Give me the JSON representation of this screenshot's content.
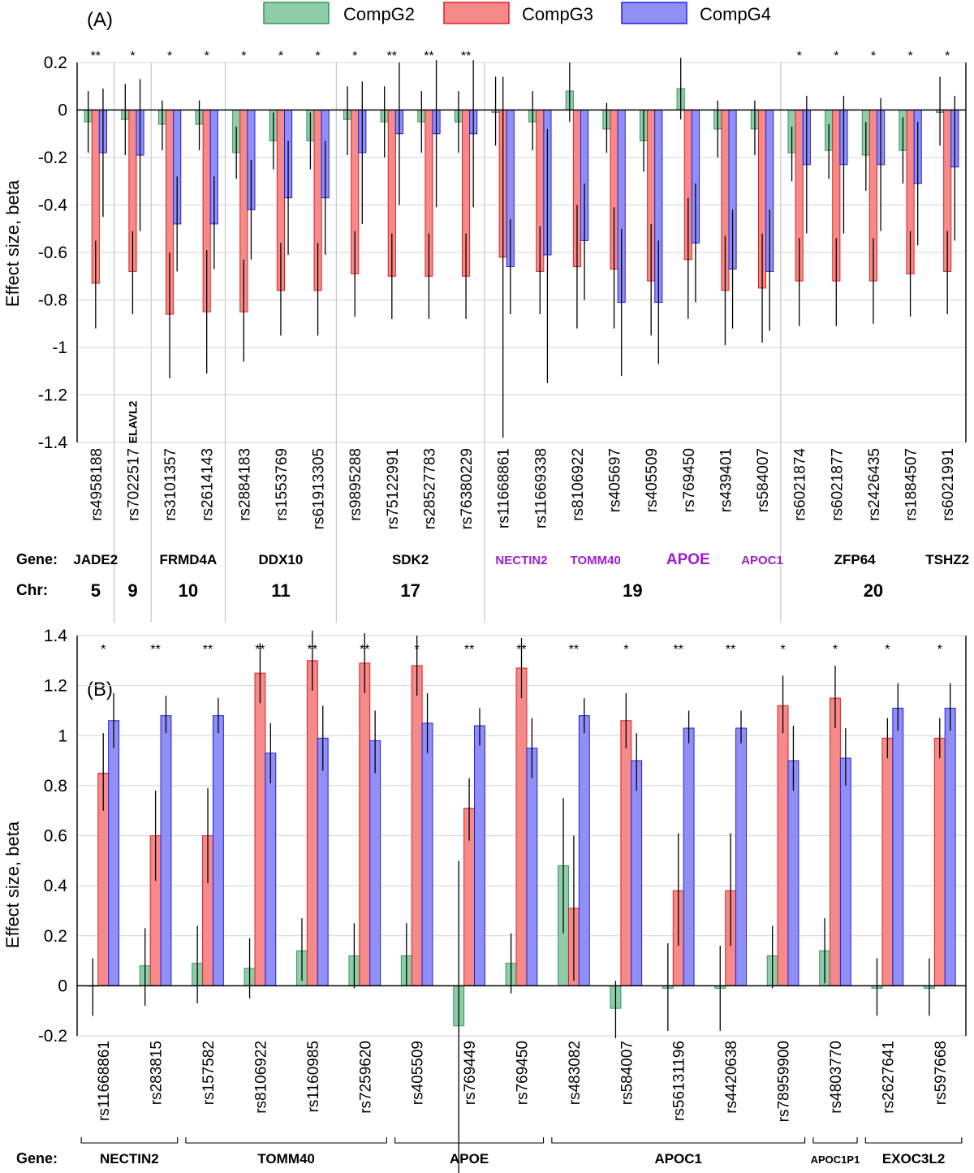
{
  "colors": {
    "CompG2": {
      "fill": "#8fcdaa",
      "stroke": "#2f9a55"
    },
    "CompG3": {
      "fill": "#f58a8a",
      "stroke": "#e01e1e"
    },
    "CompG4": {
      "fill": "#8f8ff5",
      "stroke": "#2020e0"
    }
  },
  "legend": [
    "CompG2",
    "CompG3",
    "CompG4"
  ],
  "chart_data": [
    {
      "panel": "(A)",
      "type": "bar",
      "ylabel": "Effect size, beta",
      "ylim": [
        -1.4,
        0.2
      ],
      "yticks": [
        "0.2",
        "0",
        "-0.2",
        "-0.4",
        "-0.6",
        "-0.8",
        "-1",
        "-1.2",
        "-1.4"
      ],
      "ytick_values": [
        0.2,
        0,
        -0.2,
        -0.4,
        -0.6,
        -0.8,
        -1,
        -1.2,
        -1.4
      ],
      "categories": [
        "rs4958188",
        "rs7022517",
        "rs3101357",
        "rs2614143",
        "rs2884183",
        "rs1553769",
        "rs61913305",
        "rs9895288",
        "rs75122991",
        "rs28527783",
        "rs76380229",
        "rs11668861",
        "rs11669338",
        "rs8106922",
        "rs405697",
        "rs405509",
        "rs769450",
        "rs439401",
        "rs584007",
        "rs6021874",
        "rs6021877",
        "rs2426435",
        "rs1884507",
        "rs6021991"
      ],
      "significance": [
        "**",
        "*",
        "*",
        "*",
        "*",
        "*",
        "*",
        "*",
        "**",
        "**",
        "**",
        "",
        "",
        "",
        "",
        "",
        "",
        "",
        "",
        "*",
        "*",
        "*",
        "*",
        "*"
      ],
      "series": [
        {
          "name": "CompG2",
          "values": [
            -0.05,
            -0.04,
            -0.06,
            -0.06,
            -0.18,
            -0.13,
            -0.13,
            -0.04,
            -0.05,
            -0.05,
            -0.05,
            -0.01,
            -0.05,
            0.08,
            -0.08,
            -0.13,
            0.09,
            -0.08,
            -0.08,
            -0.18,
            -0.17,
            -0.19,
            -0.17,
            -0.01
          ],
          "ci": [
            [
              -0.18,
              0.08
            ],
            [
              -0.19,
              0.11
            ],
            [
              -0.17,
              0.04
            ],
            [
              -0.17,
              0.04
            ],
            [
              -0.29,
              -0.07
            ],
            [
              -0.25,
              -0.01
            ],
            [
              -0.25,
              -0.01
            ],
            [
              -0.19,
              0.1
            ],
            [
              -0.2,
              0.1
            ],
            [
              -0.18,
              0.08
            ],
            [
              -0.18,
              0.08
            ],
            [
              -0.15,
              0.14
            ],
            [
              -0.17,
              0.08
            ],
            [
              -0.05,
              0.2
            ],
            [
              -0.18,
              0.03
            ],
            [
              -0.26,
              0.0
            ],
            [
              -0.04,
              0.22
            ],
            [
              -0.2,
              0.04
            ],
            [
              -0.19,
              0.04
            ],
            [
              -0.3,
              -0.07
            ],
            [
              -0.29,
              -0.06
            ],
            [
              -0.34,
              -0.05
            ],
            [
              -0.31,
              -0.03
            ],
            [
              -0.15,
              0.14
            ]
          ]
        },
        {
          "name": "CompG3",
          "values": [
            -0.73,
            -0.68,
            -0.86,
            -0.85,
            -0.85,
            -0.76,
            -0.76,
            -0.69,
            -0.7,
            -0.7,
            -0.7,
            -0.62,
            -0.68,
            -0.66,
            -0.67,
            -0.72,
            -0.63,
            -0.76,
            -0.75,
            -0.72,
            -0.72,
            -0.72,
            -0.69,
            -0.68
          ],
          "ci": [
            [
              -0.92,
              -0.55
            ],
            [
              -0.86,
              -0.51
            ],
            [
              -1.13,
              -0.6
            ],
            [
              -1.11,
              -0.59
            ],
            [
              -1.06,
              -0.63
            ],
            [
              -0.95,
              -0.56
            ],
            [
              -0.95,
              -0.56
            ],
            [
              -0.87,
              -0.51
            ],
            [
              -0.88,
              -0.52
            ],
            [
              -0.88,
              -0.52
            ],
            [
              -0.88,
              -0.52
            ],
            [
              -1.38,
              0.14
            ],
            [
              -0.86,
              -0.49
            ],
            [
              -0.92,
              -0.4
            ],
            [
              -0.92,
              -0.41
            ],
            [
              -0.95,
              -0.48
            ],
            [
              -0.88,
              -0.37
            ],
            [
              -0.99,
              -0.53
            ],
            [
              -0.98,
              -0.52
            ],
            [
              -0.91,
              -0.54
            ],
            [
              -0.91,
              -0.54
            ],
            [
              -0.9,
              -0.54
            ],
            [
              -0.87,
              -0.51
            ],
            [
              -0.86,
              -0.51
            ]
          ]
        },
        {
          "name": "CompG4",
          "values": [
            -0.18,
            -0.19,
            -0.48,
            -0.48,
            -0.42,
            -0.37,
            -0.37,
            -0.18,
            -0.1,
            -0.1,
            -0.1,
            -0.66,
            -0.61,
            -0.55,
            -0.81,
            -0.81,
            -0.56,
            -0.67,
            -0.68,
            -0.23,
            -0.23,
            -0.23,
            -0.31,
            -0.24
          ],
          "ci": [
            [
              -0.45,
              0.09
            ],
            [
              -0.51,
              0.13
            ],
            [
              -0.68,
              -0.28
            ],
            [
              -0.67,
              -0.28
            ],
            [
              -0.63,
              -0.21
            ],
            [
              -0.61,
              -0.13
            ],
            [
              -0.61,
              -0.13
            ],
            [
              -0.48,
              0.12
            ],
            [
              -0.4,
              0.2
            ],
            [
              -0.41,
              0.21
            ],
            [
              -0.41,
              0.21
            ],
            [
              -0.86,
              -0.46
            ],
            [
              -1.15,
              -0.08
            ],
            [
              -0.8,
              -0.31
            ],
            [
              -1.12,
              -0.5
            ],
            [
              -1.07,
              -0.55
            ],
            [
              -0.81,
              -0.31
            ],
            [
              -0.92,
              -0.42
            ],
            [
              -0.93,
              -0.42
            ],
            [
              -0.52,
              0.06
            ],
            [
              -0.52,
              0.06
            ],
            [
              -0.51,
              0.05
            ],
            [
              -0.57,
              -0.05
            ],
            [
              -0.55,
              0.06
            ]
          ]
        }
      ],
      "genes": [
        {
          "label": "JADE2",
          "start": 0,
          "end": 0,
          "purple": false
        },
        {
          "label": "ELAVL2",
          "start": 1,
          "end": 1,
          "purple": false,
          "vertical": true
        },
        {
          "label": "FRMD4A",
          "start": 2,
          "end": 3,
          "purple": false
        },
        {
          "label": "DDX10",
          "start": 4,
          "end": 6,
          "purple": false
        },
        {
          "label": "SDK2",
          "start": 7,
          "end": 10,
          "purple": false
        },
        {
          "label": "NECTIN2",
          "start": 11,
          "end": 12,
          "purple": true
        },
        {
          "label": "TOMM40",
          "start": 13,
          "end": 14,
          "purple": true
        },
        {
          "label": "APOE",
          "start": 15,
          "end": 17,
          "purple": true
        },
        {
          "label": "APOC1",
          "start": 18,
          "end": 18,
          "purple": true
        },
        {
          "label": "ZFP64",
          "start": 19,
          "end": 22,
          "purple": false
        },
        {
          "label": "TSHZ2",
          "start": 23,
          "end": 23,
          "purple": false
        }
      ],
      "chromosomes": [
        {
          "label": "5",
          "start": 0,
          "end": 0
        },
        {
          "label": "9",
          "start": 1,
          "end": 1
        },
        {
          "label": "10",
          "start": 2,
          "end": 3
        },
        {
          "label": "11",
          "start": 4,
          "end": 6
        },
        {
          "label": "17",
          "start": 7,
          "end": 10
        },
        {
          "label": "19",
          "start": 11,
          "end": 18
        },
        {
          "label": "20",
          "start": 19,
          "end": 23
        }
      ],
      "gene_row_label": "Gene:",
      "chr_row_label": "Chr:"
    },
    {
      "panel": "(B)",
      "type": "bar",
      "ylabel": "Effect size, beta",
      "ylim": [
        -0.2,
        1.4
      ],
      "yticks": [
        "1.4",
        "1.2",
        "1",
        "0.8",
        "0.6",
        "0.4",
        "0.2",
        "0",
        "-0.2"
      ],
      "ytick_values": [
        1.4,
        1.2,
        1,
        0.8,
        0.6,
        0.4,
        0.2,
        0,
        -0.2
      ],
      "categories": [
        "rs11668861",
        "rs283815",
        "rs157582",
        "rs8106922",
        "rs1160985",
        "rs7259620",
        "rs405509",
        "rs769449",
        "rs769450",
        "rs483082",
        "rs584007",
        "rs56131196",
        "rs4420638",
        "rs78959900",
        "rs4803770",
        "rs2627641",
        "rs597668"
      ],
      "significance": [
        "*",
        "**",
        "**",
        "**",
        "**",
        "**",
        "*",
        "**",
        "**",
        "**",
        "*",
        "**",
        "**",
        "*",
        "*",
        "*",
        "*"
      ],
      "series": [
        {
          "name": "CompG2",
          "values": [
            0.0,
            0.08,
            0.09,
            0.07,
            0.14,
            0.12,
            0.12,
            -0.16,
            0.09,
            0.48,
            -0.09,
            -0.01,
            -0.01,
            0.12,
            0.14,
            -0.01,
            -0.01
          ],
          "ci": [
            [
              -0.12,
              0.11
            ],
            [
              -0.08,
              0.23
            ],
            [
              -0.07,
              0.24
            ],
            [
              -0.05,
              0.19
            ],
            [
              0.02,
              0.27
            ],
            [
              -0.01,
              0.25
            ],
            [
              0.0,
              0.25
            ],
            [
              -0.83,
              0.5
            ],
            [
              -0.03,
              0.21
            ],
            [
              0.21,
              0.75
            ],
            [
              -0.21,
              0.02
            ],
            [
              -0.18,
              0.17
            ],
            [
              -0.18,
              0.16
            ],
            [
              -0.01,
              0.24
            ],
            [
              0.01,
              0.27
            ],
            [
              -0.12,
              0.11
            ],
            [
              -0.12,
              0.11
            ]
          ]
        },
        {
          "name": "CompG3",
          "values": [
            0.85,
            0.6,
            0.6,
            1.25,
            1.3,
            1.29,
            1.28,
            0.71,
            1.27,
            0.31,
            1.06,
            0.38,
            0.38,
            1.12,
            1.15,
            0.99,
            0.99
          ],
          "ci": [
            [
              0.7,
              1.01
            ],
            [
              0.42,
              0.78
            ],
            [
              0.41,
              0.79
            ],
            [
              1.13,
              1.37
            ],
            [
              1.18,
              1.42
            ],
            [
              1.17,
              1.41
            ],
            [
              1.16,
              1.4
            ],
            [
              0.58,
              0.83
            ],
            [
              1.15,
              1.39
            ],
            [
              0.02,
              0.6
            ],
            [
              0.95,
              1.17
            ],
            [
              0.16,
              0.61
            ],
            [
              0.16,
              0.61
            ],
            [
              1.01,
              1.24
            ],
            [
              1.03,
              1.28
            ],
            [
              0.91,
              1.07
            ],
            [
              0.91,
              1.07
            ]
          ]
        },
        {
          "name": "CompG4",
          "values": [
            1.06,
            1.08,
            1.08,
            0.93,
            0.99,
            0.98,
            1.05,
            1.04,
            0.95,
            1.08,
            0.9,
            1.03,
            1.03,
            0.9,
            0.91,
            1.11,
            1.11
          ],
          "ci": [
            [
              0.95,
              1.17
            ],
            [
              1.01,
              1.16
            ],
            [
              1.01,
              1.15
            ],
            [
              0.81,
              1.05
            ],
            [
              0.86,
              1.12
            ],
            [
              0.85,
              1.1
            ],
            [
              0.93,
              1.17
            ],
            [
              0.96,
              1.11
            ],
            [
              0.83,
              1.07
            ],
            [
              1.01,
              1.15
            ],
            [
              0.78,
              1.01
            ],
            [
              0.97,
              1.1
            ],
            [
              0.97,
              1.1
            ],
            [
              0.78,
              1.04
            ],
            [
              0.8,
              1.03
            ],
            [
              1.02,
              1.21
            ],
            [
              1.02,
              1.21
            ]
          ]
        }
      ],
      "genes": [
        {
          "label": "NECTIN2",
          "start": 0,
          "end": 1,
          "small": false
        },
        {
          "label": "TOMM40",
          "start": 2,
          "end": 5,
          "small": false
        },
        {
          "label": "APOE",
          "start": 6,
          "end": 8,
          "small": false
        },
        {
          "label": "APOC1",
          "start": 9,
          "end": 13,
          "small": false
        },
        {
          "label": "APOC1P1",
          "start": 14,
          "end": 14,
          "small": true
        },
        {
          "label": "EXOC3L2",
          "start": 15,
          "end": 16,
          "small": false
        }
      ],
      "gene_row_label": "Gene:"
    }
  ]
}
